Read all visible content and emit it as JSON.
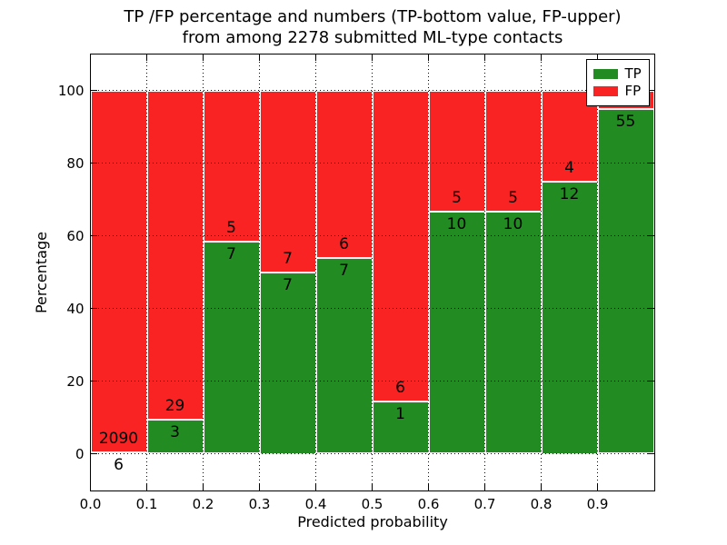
{
  "figure": {
    "title_line1": "TP /FP percentage and numbers (TP-bottom value, FP-upper)",
    "title_line2": "from among 2278 submitted ML-type contacts"
  },
  "axes": {
    "xlabel": "Predicted probability",
    "ylabel": "Percentage",
    "xtick_labels": [
      "0.0",
      "0.1",
      "0.2",
      "0.3",
      "0.4",
      "0.5",
      "0.6",
      "0.7",
      "0.8",
      "0.9"
    ],
    "ytick_values": [
      0,
      20,
      40,
      60,
      80,
      100
    ],
    "xlim": [
      0.0,
      1.0
    ],
    "ylim": [
      -10,
      110
    ],
    "grid_style": "dotted"
  },
  "legend": {
    "position": "upper right",
    "entries": [
      {
        "label": "TP",
        "color": "#228b22"
      },
      {
        "label": "FP",
        "color": "#fa2323"
      }
    ]
  },
  "chart_data": {
    "type": "bar",
    "stacked": true,
    "unit": "percent",
    "title": "TP /FP percentage and numbers (TP-bottom value, FP-upper) from among 2278 submitted ML-type contacts",
    "xlabel": "Predicted probability",
    "ylabel": "Percentage",
    "categories": [
      "0.0-0.1",
      "0.1-0.2",
      "0.2-0.3",
      "0.3-0.4",
      "0.4-0.5",
      "0.5-0.6",
      "0.6-0.7",
      "0.7-0.8",
      "0.8-0.9",
      "0.9-1.0"
    ],
    "series": [
      {
        "name": "TP",
        "color": "#228b22",
        "counts": [
          6,
          3,
          7,
          7,
          7,
          1,
          10,
          10,
          12,
          55
        ],
        "percent": [
          0.29,
          9.38,
          58.33,
          50.0,
          53.85,
          14.29,
          66.67,
          66.67,
          75.0,
          94.83
        ]
      },
      {
        "name": "FP",
        "color": "#fa2323",
        "counts": [
          2090,
          29,
          5,
          7,
          6,
          6,
          5,
          5,
          4,
          null
        ],
        "percent": [
          99.71,
          90.62,
          41.67,
          50.0,
          46.15,
          85.71,
          33.33,
          33.33,
          25.0,
          5.17
        ]
      }
    ],
    "notes": "Each bar stacks to 100%; TP count label below the TP/FP boundary, FP count label above it; FP count of last bin hidden behind legend"
  },
  "colors": {
    "tp_green": "#228b22",
    "fp_red": "#fa2323",
    "grid": "#000000",
    "background": "#ffffff"
  }
}
